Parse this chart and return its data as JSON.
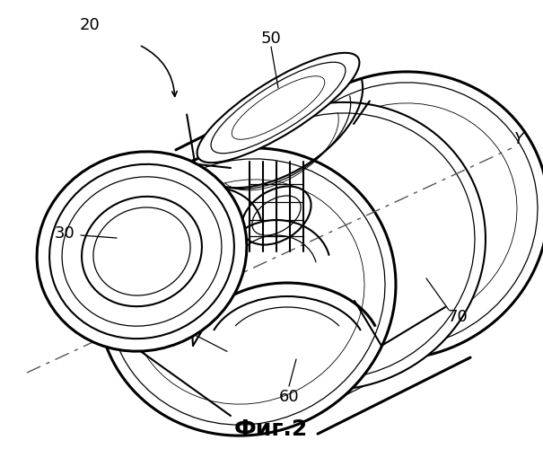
{
  "title": "Фиг.2",
  "background_color": "#ffffff",
  "line_color": "#000000",
  "dash_color": "#555555",
  "title_fontsize": 18,
  "label_fontsize": 13,
  "lw_heavy": 2.2,
  "lw_med": 1.5,
  "lw_thin": 0.9,
  "lw_xtra": 0.6
}
